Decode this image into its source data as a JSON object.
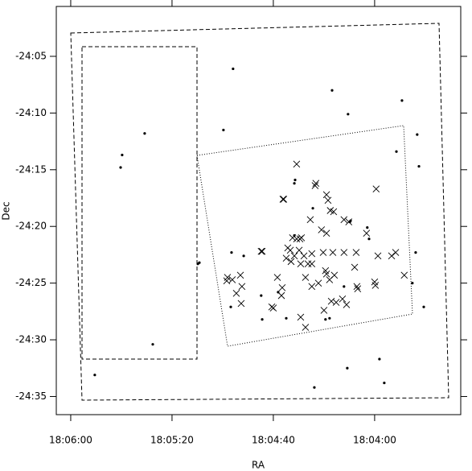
{
  "chart_data": {
    "type": "scatter",
    "x_label": "RA",
    "y_label": "Dec",
    "xlim": [
      65165.7,
      65006
    ],
    "ylim": [
      -1476.6,
      -1440.6
    ],
    "xticks": [
      {
        "value": 65160,
        "label": "18:06:00"
      },
      {
        "value": 65120,
        "label": "18:05:20"
      },
      {
        "value": 65080,
        "label": "18:04:40"
      },
      {
        "value": 65040,
        "label": "18:04:00"
      }
    ],
    "yticks": [
      {
        "value": -1445,
        "label": "-24:05"
      },
      {
        "value": -1450,
        "label": "-24:10"
      },
      {
        "value": -1455,
        "label": "-24:15"
      },
      {
        "value": -1460,
        "label": "-24:20"
      },
      {
        "value": -1465,
        "label": "-24:25"
      },
      {
        "value": -1470,
        "label": "-24:30"
      },
      {
        "value": -1475,
        "label": "-24:35"
      }
    ],
    "series": [
      {
        "marker": "dot",
        "color": "#000000",
        "x": [
          65150.5,
          65140.3,
          65139.7,
          65130.8,
          65127.6,
          65109.8,
          65109.2,
          65099.7,
          65095.9,
          65096.5,
          65096.8,
          65091.7,
          65056.8,
          65050.5,
          65029.2,
          65023.2,
          65022.5,
          65031.4,
          65023.8,
          65020.6,
          65025.1,
          65050.8,
          65036.2,
          65038.1,
          65063.8,
          65084.8,
          65084.4,
          65074.9,
          65059.4,
          65057.8,
          65052.1,
          65042.9,
          65042.2,
          65071.7,
          65064.4,
          65049.5,
          65078.1,
          65071.7,
          65071.4,
          65049.8
        ],
        "y": [
          -1473.1,
          -1454.8,
          -1453.7,
          -1451.8,
          -1470.4,
          -1463.3,
          -1463.2,
          -1451.5,
          -1446.1,
          -1462.3,
          -1467.1,
          -1462.6,
          -1448.0,
          -1450.1,
          -1448.9,
          -1451.9,
          -1454.7,
          -1453.4,
          -1462.3,
          -1467.1,
          -1465.0,
          -1472.5,
          -1473.8,
          -1471.7,
          -1474.2,
          -1466.1,
          -1468.2,
          -1468.1,
          -1468.2,
          -1468.1,
          -1465.3,
          -1460.1,
          -1461.1,
          -1460.8,
          -1458.4,
          -1459.5,
          -1465.8,
          -1456.2,
          -1455.9,
          -1459.6
        ]
      },
      {
        "marker": "cross",
        "color": "#000000",
        "x": [
          65070.8,
          65063.2,
          65063.5,
          65059.0,
          65058.4,
          65057.5,
          65056.2,
          65050.2,
          65075.9,
          65065.4,
          65072.4,
          65068.9,
          65069.5,
          65070.8,
          65074.3,
          65073.3,
          65069.8,
          65071.7,
          65067.9,
          65064.8,
          65060.3,
          65056.5,
          65052.1,
          65047.3,
          65059.0,
          65061.0,
          65047.9,
          65055.9,
          65059.4,
          65057.8,
          65064.8,
          65069.2,
          65066.3,
          65073.0,
          65074.9,
          65084.4,
          65078.4,
          65076.5,
          65080.6,
          65080.0,
          65084.8,
          65093.0,
          65098.1,
          65098.4,
          65096.2,
          65092.4,
          65094.6,
          65092.7,
          65076.8,
          65069.2,
          65067.3,
          65060.0,
          65057.1,
          65052.7,
          65047.0,
          65046.7,
          65040.0,
          65039.7,
          65038.7,
          65033.3,
          65031.7,
          65039.4,
          65028.3,
          65051.1,
          65055.2,
          65062.2,
          65064.8,
          65067.3,
          65059.0,
          65076.2,
          65052.1,
          65043.2
        ],
        "y": [
          -1454.5,
          -1456.2,
          -1456.4,
          -1457.2,
          -1457.7,
          -1458.6,
          -1458.7,
          -1459.6,
          -1457.6,
          -1459.4,
          -1461.0,
          -1461.0,
          -1461.1,
          -1461.1,
          -1461.9,
          -1462.1,
          -1462.1,
          -1462.6,
          -1462.6,
          -1462.4,
          -1462.3,
          -1462.3,
          -1462.3,
          -1462.3,
          -1460.6,
          -1460.3,
          -1463.6,
          -1464.3,
          -1463.9,
          -1464.7,
          -1463.3,
          -1463.3,
          -1463.3,
          -1463.1,
          -1462.8,
          -1462.2,
          -1464.5,
          -1465.4,
          -1467.1,
          -1467.2,
          -1462.2,
          -1464.3,
          -1464.5,
          -1464.8,
          -1464.7,
          -1465.3,
          -1465.9,
          -1466.8,
          -1466.1,
          -1468.0,
          -1468.9,
          -1467.4,
          -1466.6,
          -1466.4,
          -1465.3,
          -1465.5,
          -1464.9,
          -1465.2,
          -1462.6,
          -1462.6,
          -1462.3,
          -1456.7,
          -1464.3,
          -1466.9,
          -1466.7,
          -1465.0,
          -1465.3,
          -1464.5,
          -1464.2,
          -1457.6,
          -1459.4,
          -1460.6
        ]
      }
    ]
  }
}
